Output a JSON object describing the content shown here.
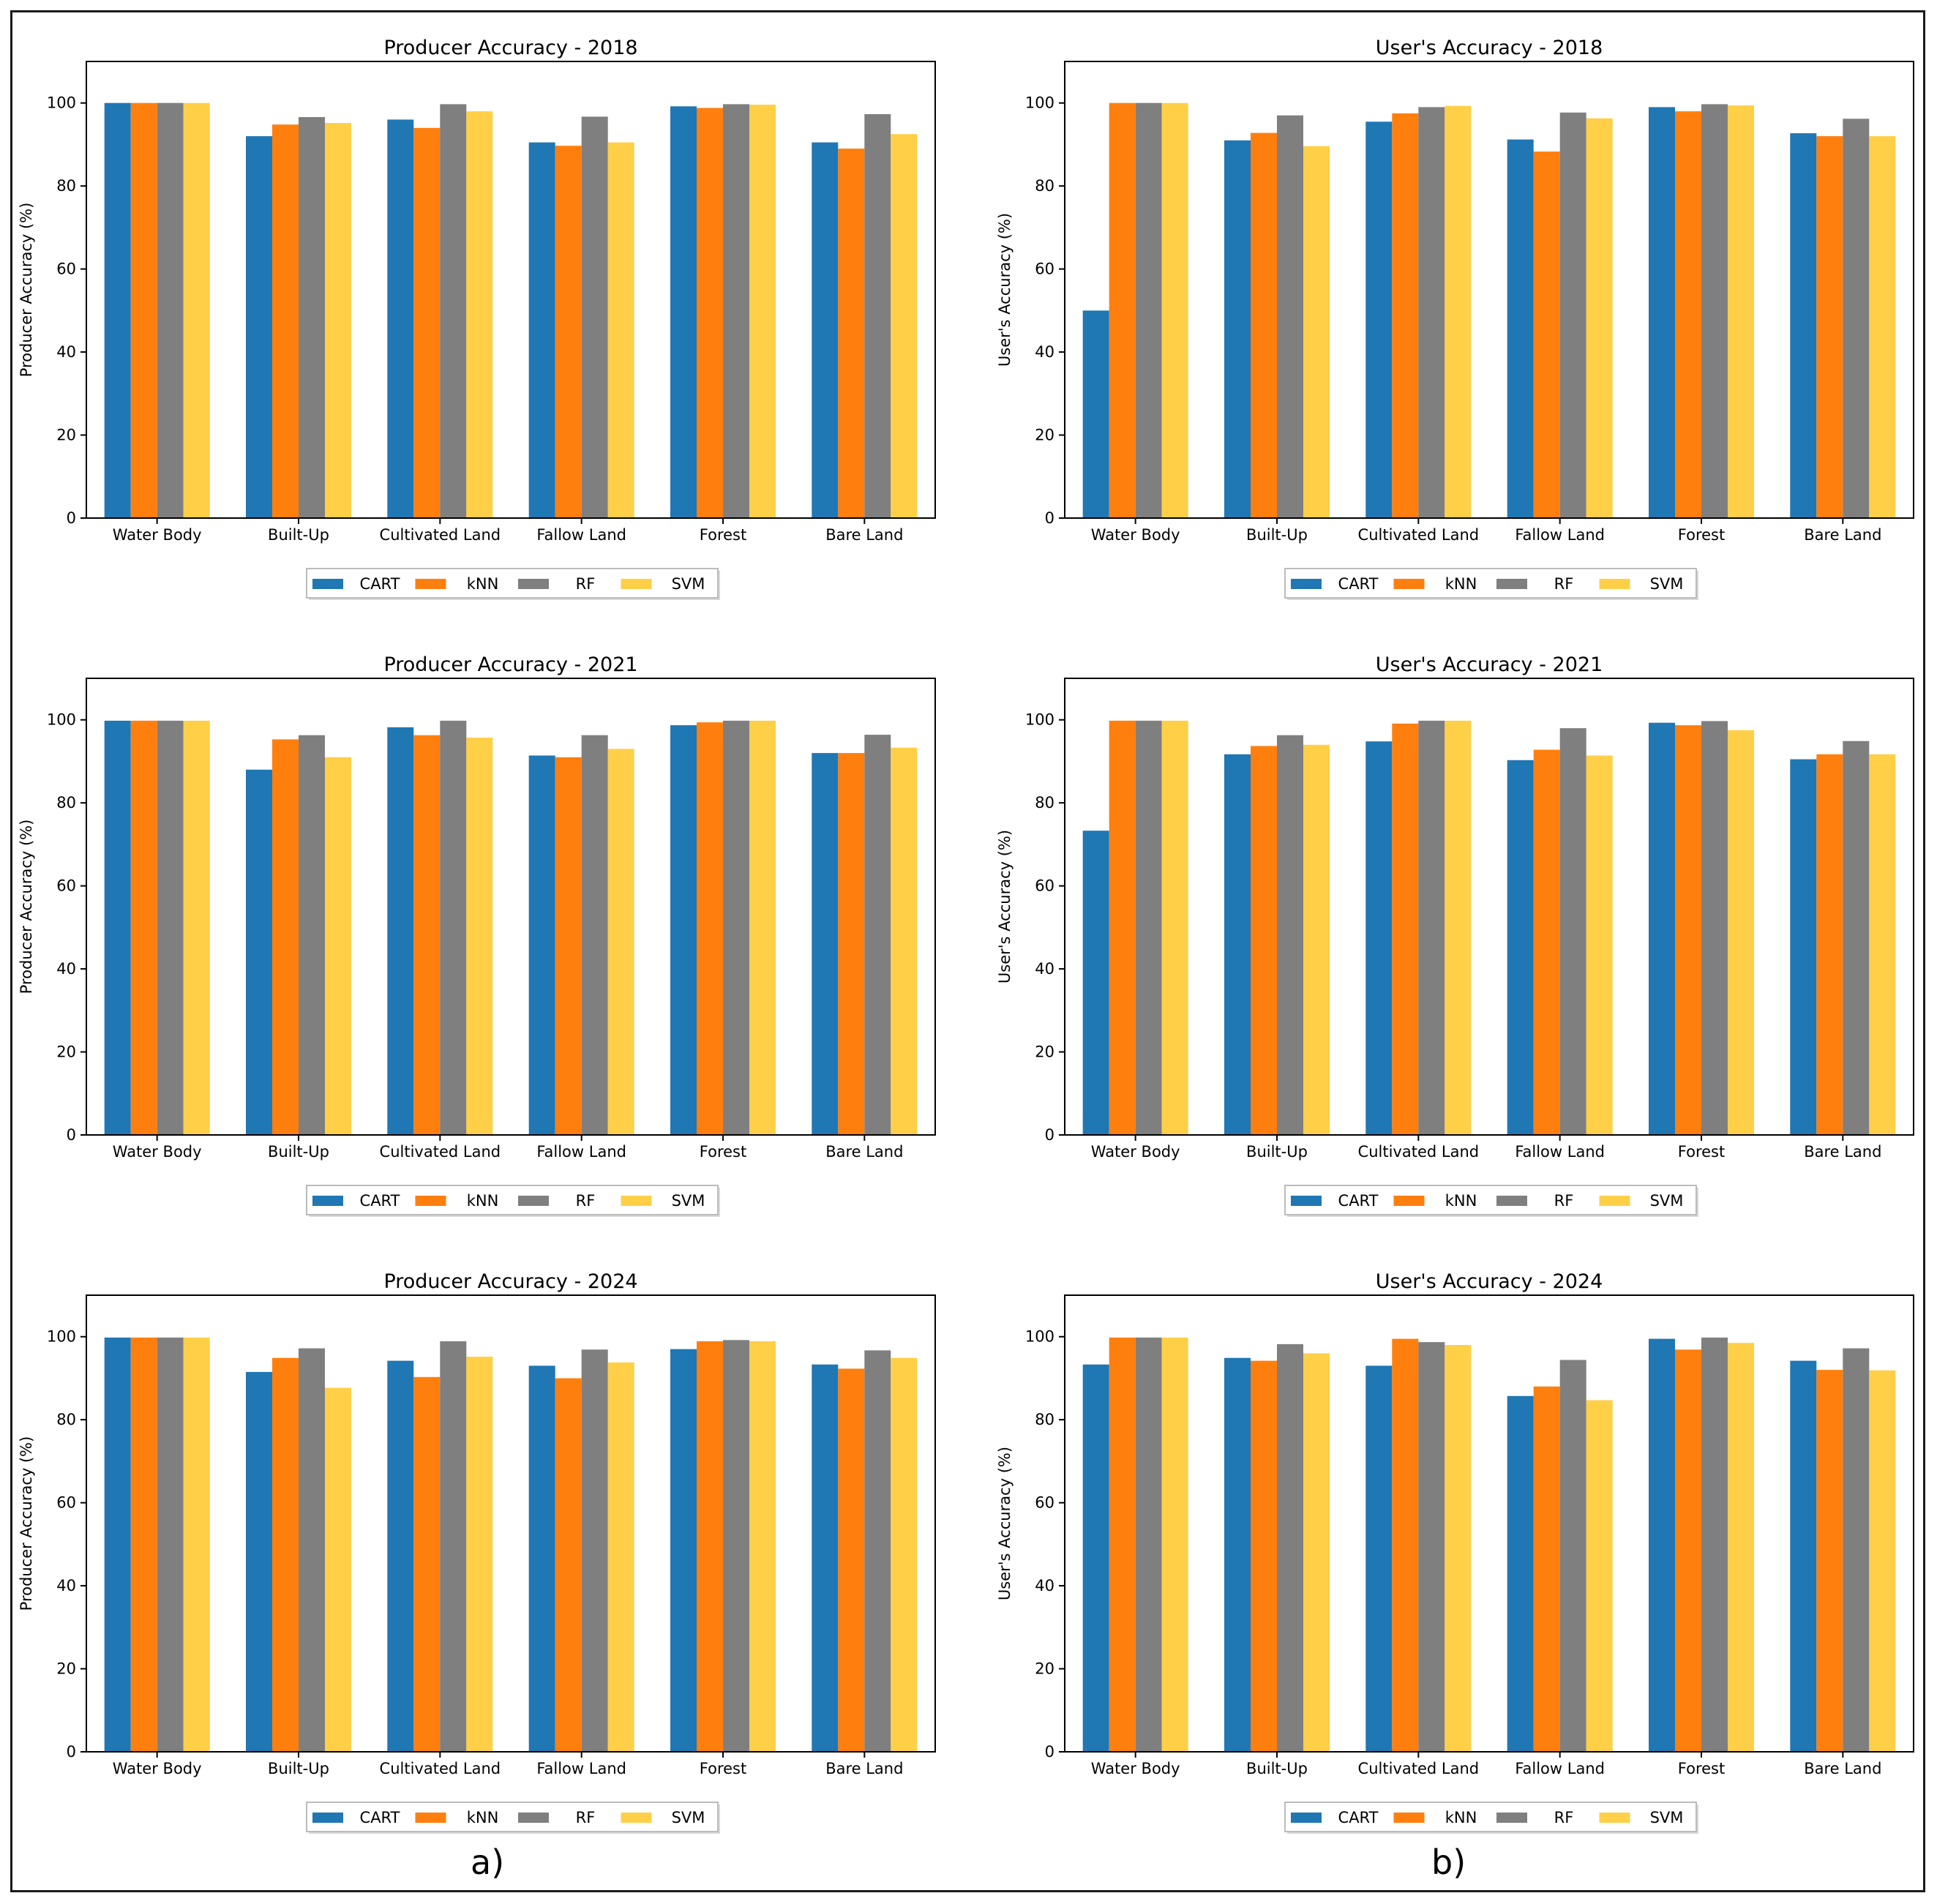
{
  "figure": {
    "panel_labels": [
      "a)",
      "b)"
    ]
  },
  "colors": {
    "CART": "#1f77b4",
    "kNN": "#ff7f0e",
    "RF": "#7f7f7f",
    "SVM": "#ffcf48"
  },
  "chart_data": [
    {
      "type": "bar",
      "title": "Producer Accuracy - 2018",
      "xlabel": "",
      "ylabel": "Producer Accuracy (%)",
      "ylim": [
        0,
        110
      ],
      "yticks": [
        0,
        20,
        40,
        60,
        80,
        100
      ],
      "legend_position": "bottom-center",
      "categories": [
        "Water Body",
        "Built-Up",
        "Cultivated Land",
        "Fallow Land",
        "Forest",
        "Bare Land"
      ],
      "series": [
        {
          "name": "CART",
          "values": [
            100,
            92,
            96,
            90.5,
            99.2,
            90.5
          ]
        },
        {
          "name": "kNN",
          "values": [
            100,
            94.8,
            94,
            89.7,
            98.8,
            89
          ]
        },
        {
          "name": "RF",
          "values": [
            100,
            96.6,
            99.7,
            96.7,
            99.7,
            97.3
          ]
        },
        {
          "name": "SVM",
          "values": [
            100,
            95.2,
            98,
            90.5,
            99.6,
            92.5
          ]
        }
      ]
    },
    {
      "type": "bar",
      "title": "User's Accuracy - 2018",
      "xlabel": "",
      "ylabel": "User's Accuracy (%)",
      "ylim": [
        0,
        110
      ],
      "yticks": [
        0,
        20,
        40,
        60,
        80,
        100
      ],
      "legend_position": "bottom-center",
      "categories": [
        "Water Body",
        "Built-Up",
        "Cultivated Land",
        "Fallow Land",
        "Forest",
        "Bare Land"
      ],
      "series": [
        {
          "name": "CART",
          "values": [
            50,
            91,
            95.5,
            91.2,
            99,
            92.7
          ]
        },
        {
          "name": "kNN",
          "values": [
            100,
            92.8,
            97.5,
            88.3,
            98,
            92
          ]
        },
        {
          "name": "RF",
          "values": [
            100,
            97,
            99,
            97.7,
            99.7,
            96.2
          ]
        },
        {
          "name": "SVM",
          "values": [
            100,
            89.6,
            99.3,
            96.3,
            99.4,
            92
          ]
        }
      ]
    },
    {
      "type": "bar",
      "title": "Producer Accuracy - 2021",
      "xlabel": "",
      "ylabel": "Producer Accuracy (%)",
      "ylim": [
        0,
        110
      ],
      "yticks": [
        0,
        20,
        40,
        60,
        80,
        100
      ],
      "legend_position": "bottom-center",
      "categories": [
        "Water Body",
        "Built-Up",
        "Cultivated Land",
        "Fallow Land",
        "Forest",
        "Bare Land"
      ],
      "series": [
        {
          "name": "CART",
          "values": [
            99.8,
            88,
            98.2,
            91.4,
            98.7,
            92
          ]
        },
        {
          "name": "kNN",
          "values": [
            99.8,
            95.3,
            96.3,
            91,
            99.4,
            92
          ]
        },
        {
          "name": "RF",
          "values": [
            99.8,
            96.3,
            99.8,
            96.3,
            99.8,
            96.4
          ]
        },
        {
          "name": "SVM",
          "values": [
            99.8,
            91,
            95.7,
            93,
            99.8,
            93.3
          ]
        }
      ]
    },
    {
      "type": "bar",
      "title": "User's Accuracy - 2021",
      "xlabel": "",
      "ylabel": "User's Accuracy (%)",
      "ylim": [
        0,
        110
      ],
      "yticks": [
        0,
        20,
        40,
        60,
        80,
        100
      ],
      "legend_position": "bottom-center",
      "categories": [
        "Water Body",
        "Built-Up",
        "Cultivated Land",
        "Fallow Land",
        "Forest",
        "Bare Land"
      ],
      "series": [
        {
          "name": "CART",
          "values": [
            73.3,
            91.7,
            94.8,
            90.3,
            99.3,
            90.5
          ]
        },
        {
          "name": "kNN",
          "values": [
            99.8,
            93.7,
            99.1,
            92.8,
            98.7,
            91.7
          ]
        },
        {
          "name": "RF",
          "values": [
            99.8,
            96.3,
            99.8,
            98,
            99.7,
            94.9
          ]
        },
        {
          "name": "SVM",
          "values": [
            99.8,
            94,
            99.8,
            91.4,
            97.5,
            91.7
          ]
        }
      ]
    },
    {
      "type": "bar",
      "title": "Producer Accuracy - 2024",
      "xlabel": "",
      "ylabel": "Producer Accuracy (%)",
      "ylim": [
        0,
        110
      ],
      "yticks": [
        0,
        20,
        40,
        60,
        80,
        100
      ],
      "legend_position": "bottom-center",
      "categories": [
        "Water Body",
        "Built-Up",
        "Cultivated Land",
        "Fallow Land",
        "Forest",
        "Bare Land"
      ],
      "series": [
        {
          "name": "CART",
          "values": [
            99.8,
            91.5,
            94.2,
            93,
            97,
            93.3
          ]
        },
        {
          "name": "kNN",
          "values": [
            99.8,
            94.9,
            90.3,
            90,
            98.9,
            92.3
          ]
        },
        {
          "name": "RF",
          "values": [
            99.8,
            97.2,
            98.9,
            96.9,
            99.2,
            96.7
          ]
        },
        {
          "name": "SVM",
          "values": [
            99.8,
            87.7,
            95.2,
            93.8,
            98.9,
            94.9
          ]
        }
      ]
    },
    {
      "type": "bar",
      "title": "User's Accuracy - 2024",
      "xlabel": "",
      "ylabel": "User's Accuracy (%)",
      "ylim": [
        0,
        110
      ],
      "yticks": [
        0,
        20,
        40,
        60,
        80,
        100
      ],
      "legend_position": "bottom-center",
      "categories": [
        "Water Body",
        "Built-Up",
        "Cultivated Land",
        "Fallow Land",
        "Forest",
        "Bare Land"
      ],
      "series": [
        {
          "name": "CART",
          "values": [
            93.3,
            94.9,
            93,
            85.7,
            99.5,
            94.2
          ]
        },
        {
          "name": "kNN",
          "values": [
            99.8,
            94.2,
            99.5,
            88,
            96.9,
            92
          ]
        },
        {
          "name": "RF",
          "values": [
            99.8,
            98.2,
            98.7,
            94.4,
            99.8,
            97.2
          ]
        },
        {
          "name": "SVM",
          "values": [
            99.8,
            96,
            98,
            84.7,
            98.5,
            91.9
          ]
        }
      ]
    }
  ]
}
